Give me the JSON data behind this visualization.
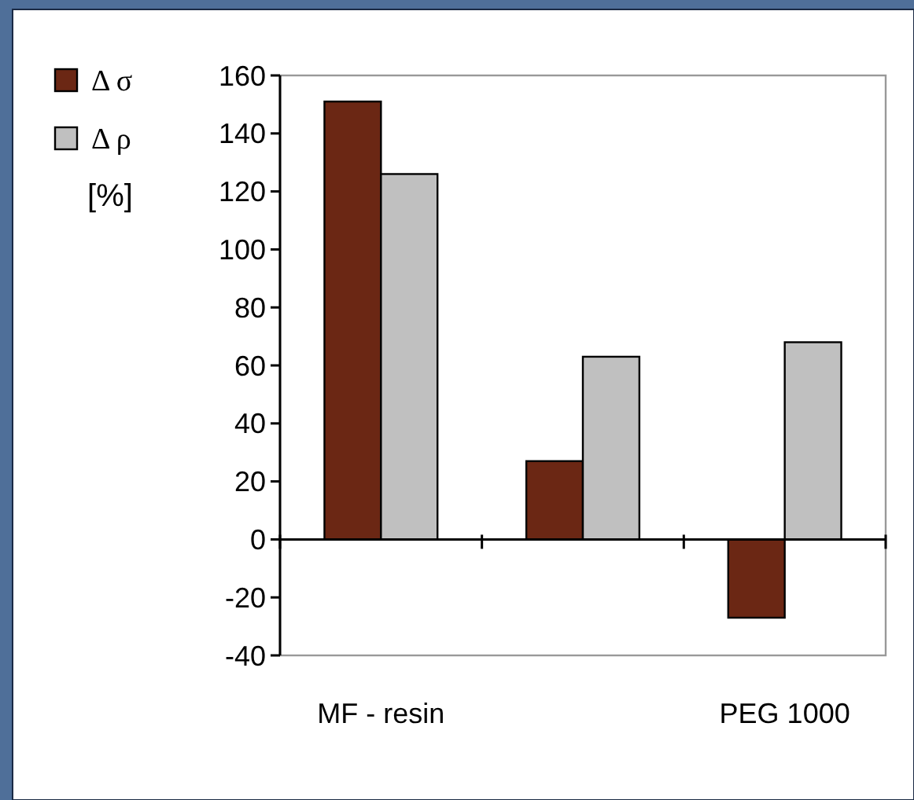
{
  "chart_data": {
    "type": "bar",
    "ylabel": "[%]",
    "categories": [
      "MF - resin",
      null,
      "PEG 1000"
    ],
    "series": [
      {
        "name": "Δ σ",
        "color": "#6b2714",
        "values": [
          151,
          27,
          -27
        ]
      },
      {
        "name": "Δ ρ",
        "color": "#c0c0c0",
        "values": [
          126,
          63,
          68
        ]
      }
    ],
    "ylim": [
      -40,
      160
    ],
    "yticks": [
      -40,
      -20,
      0,
      20,
      40,
      60,
      80,
      100,
      120,
      140,
      160
    ],
    "legend": "left"
  }
}
